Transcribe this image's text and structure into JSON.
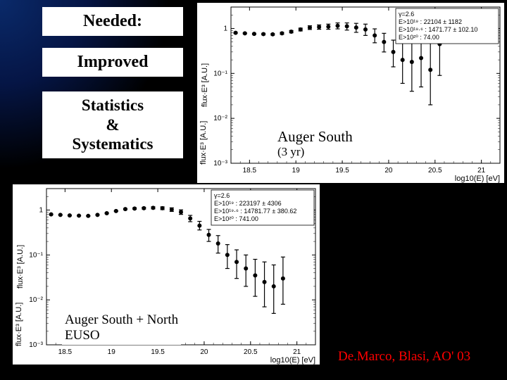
{
  "slide": {
    "background_color": "#000000",
    "gradient_accent": "#0a2a6a",
    "credit": "De.Marco, Blasi, AO' 03",
    "credit_color": "#ff0000"
  },
  "text_blocks": {
    "needed": {
      "text": "Needed:",
      "fontsize": 24,
      "fontweight": "bold"
    },
    "improved": {
      "text": "Improved",
      "fontsize": 24,
      "fontweight": "bold"
    },
    "stats_sys": {
      "line1": "Statistics",
      "line2": "&",
      "line3": "Systematics",
      "fontsize": 23,
      "fontweight": "bold"
    }
  },
  "chart_top": {
    "type": "scatter-errorbar-log",
    "title_overlay": {
      "main": "Auger South",
      "sub": "(3 yr)"
    },
    "title_fontsize_main": 21,
    "title_fontsize_sub": 17,
    "xlabel": "log10(E) [eV]",
    "ylabel": "flux·E³ [A.U.]",
    "label_fontsize": 11,
    "xlim": [
      18.3,
      21.2
    ],
    "ylim": [
      0.001,
      3
    ],
    "xticks": [
      18.5,
      19,
      19.5,
      20,
      20.5,
      21
    ],
    "yticks": [
      0.001,
      0.01,
      0.1,
      1
    ],
    "yticklabels": [
      "10⁻³",
      "10⁻²",
      "10⁻¹",
      "1"
    ],
    "background_color": "#ffffff",
    "axis_color": "#000000",
    "marker_color": "#000000",
    "marker_style": "circle",
    "marker_size": 3,
    "errorbar_width": 1.2,
    "data": {
      "x": [
        18.35,
        18.45,
        18.55,
        18.65,
        18.75,
        18.85,
        18.95,
        19.05,
        19.15,
        19.25,
        19.35,
        19.45,
        19.55,
        19.65,
        19.75,
        19.85,
        19.95,
        20.05,
        20.15,
        20.25,
        20.35,
        20.45,
        20.55
      ],
      "y": [
        0.8,
        0.78,
        0.76,
        0.75,
        0.74,
        0.78,
        0.85,
        0.95,
        1.05,
        1.08,
        1.1,
        1.15,
        1.12,
        1.05,
        0.95,
        0.7,
        0.5,
        0.3,
        0.2,
        0.18,
        0.22,
        0.12,
        0.45
      ],
      "ylo": [
        0.78,
        0.76,
        0.74,
        0.72,
        0.71,
        0.74,
        0.8,
        0.88,
        0.95,
        0.96,
        0.96,
        0.98,
        0.92,
        0.82,
        0.7,
        0.48,
        0.3,
        0.14,
        0.06,
        0.04,
        0.05,
        0.02,
        0.09
      ],
      "yhi": [
        0.82,
        0.8,
        0.78,
        0.78,
        0.77,
        0.82,
        0.9,
        1.02,
        1.15,
        1.2,
        1.25,
        1.33,
        1.33,
        1.3,
        1.25,
        0.98,
        0.78,
        0.55,
        0.5,
        0.55,
        0.7,
        0.5,
        1.2
      ]
    },
    "legend_box": {
      "position": "top-right",
      "border_color": "#000000",
      "fontsize": 9,
      "lines": [
        "γ=2.6",
        "E>10¹⁹   : 22104 ± 1182",
        "E>10¹⁹·⁶ : 1471.77 ± 102.10",
        "E>10²⁰   : 74.00"
      ]
    }
  },
  "chart_bottom": {
    "type": "scatter-errorbar-log",
    "title_overlay": {
      "line1": "Auger South + North",
      "line2": "EUSO"
    },
    "title_fontsize": 19,
    "xlabel": "log10(E) [eV]",
    "ylabel": "flux·E³ [A.U.]",
    "label_fontsize": 11,
    "xlim": [
      18.3,
      21.2
    ],
    "ylim": [
      0.001,
      3
    ],
    "xticks": [
      18.5,
      19,
      19.5,
      20,
      20.5,
      21
    ],
    "yticks": [
      0.001,
      0.01,
      0.1,
      1
    ],
    "yticklabels": [
      "10⁻³",
      "10⁻²",
      "10⁻¹",
      "1"
    ],
    "background_color": "#ffffff",
    "axis_color": "#000000",
    "marker_color": "#000000",
    "marker_style": "circle",
    "marker_size": 3,
    "errorbar_width": 1.2,
    "data": {
      "x": [
        18.35,
        18.45,
        18.55,
        18.65,
        18.75,
        18.85,
        18.95,
        19.05,
        19.15,
        19.25,
        19.35,
        19.45,
        19.55,
        19.65,
        19.75,
        19.85,
        19.95,
        20.05,
        20.15,
        20.25,
        20.35,
        20.45,
        20.55,
        20.65,
        20.75,
        20.85
      ],
      "y": [
        0.8,
        0.78,
        0.76,
        0.75,
        0.74,
        0.78,
        0.85,
        0.95,
        1.05,
        1.08,
        1.1,
        1.12,
        1.1,
        1.02,
        0.9,
        0.65,
        0.45,
        0.28,
        0.18,
        0.1,
        0.07,
        0.05,
        0.035,
        0.025,
        0.02,
        0.03
      ],
      "ylo": [
        0.79,
        0.77,
        0.75,
        0.74,
        0.73,
        0.77,
        0.83,
        0.93,
        1.02,
        1.04,
        1.05,
        1.06,
        1.02,
        0.93,
        0.8,
        0.55,
        0.36,
        0.2,
        0.11,
        0.05,
        0.03,
        0.02,
        0.012,
        0.007,
        0.005,
        0.008
      ],
      "yhi": [
        0.81,
        0.79,
        0.77,
        0.76,
        0.75,
        0.79,
        0.87,
        0.97,
        1.08,
        1.12,
        1.15,
        1.18,
        1.18,
        1.12,
        1.01,
        0.76,
        0.56,
        0.37,
        0.27,
        0.17,
        0.13,
        0.1,
        0.08,
        0.07,
        0.06,
        0.09
      ]
    },
    "legend_box": {
      "position": "top-right",
      "border_color": "#000000",
      "fontsize": 9,
      "lines": [
        "γ=2.6",
        "E>10¹⁹   : 223197 ± 4306",
        "E>10¹⁹·⁶ : 14781.77 ± 380.62",
        "E>10²⁰   : 741.00"
      ]
    }
  }
}
